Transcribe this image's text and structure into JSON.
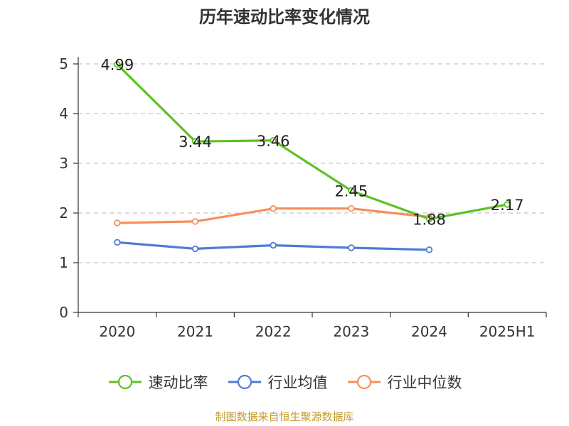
{
  "chart_data": {
    "type": "line",
    "title": "历年速动比率变化情况",
    "categories": [
      "2020",
      "2021",
      "2022",
      "2023",
      "2024",
      "2025H1"
    ],
    "ylim": [
      0,
      5
    ],
    "yticks": [
      0,
      1,
      2,
      3,
      4,
      5
    ],
    "grid": true,
    "legend_position": "bottom",
    "series": [
      {
        "name": "速动比率",
        "color": "#5dc123",
        "values": [
          4.99,
          3.44,
          3.46,
          2.45,
          1.88,
          2.17
        ],
        "labels": [
          "4.99",
          "3.44",
          "3.46",
          "2.45",
          "1.88",
          "2.17"
        ]
      },
      {
        "name": "行业均值",
        "color": "#4c7cd6",
        "values": [
          1.41,
          1.28,
          1.35,
          1.3,
          1.26,
          null
        ]
      },
      {
        "name": "行业中位数",
        "color": "#f78f5a",
        "values": [
          1.8,
          1.83,
          2.09,
          2.09,
          1.92,
          null
        ]
      }
    ]
  },
  "source": "制图数据来自恒生聚源数据库"
}
